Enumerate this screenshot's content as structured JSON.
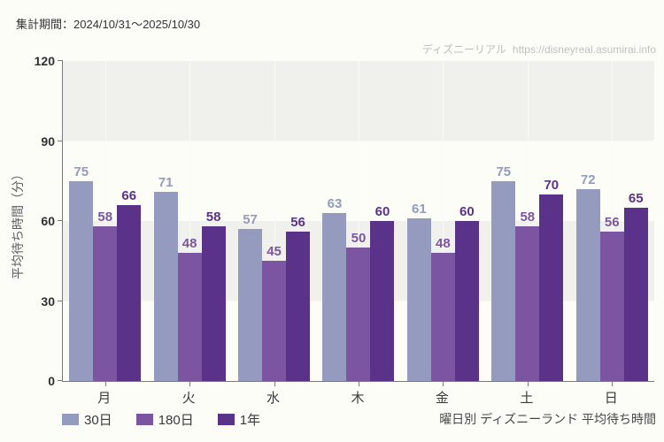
{
  "header": {
    "period": "集計期間：2024/10/31～2025/10/30"
  },
  "watermark": {
    "site": "ディズニーリアル",
    "url": "https://disneyreal.asumirai.info"
  },
  "chart_data": {
    "type": "bar",
    "title": "曜日別 ディズニーランド 平均待ち時間",
    "ylabel": "平均待ち時間（分）",
    "xlabel": "",
    "ylim": [
      0,
      120
    ],
    "yticks": [
      0,
      30,
      60,
      90,
      120
    ],
    "categories": [
      "月",
      "火",
      "水",
      "木",
      "金",
      "土",
      "日"
    ],
    "series": [
      {
        "name": "30日",
        "color": "#949bbf",
        "values": [
          75,
          71,
          57,
          63,
          61,
          75,
          72
        ]
      },
      {
        "name": "180日",
        "color": "#7c55a2",
        "values": [
          58,
          48,
          45,
          50,
          48,
          58,
          56
        ]
      },
      {
        "name": "1年",
        "color": "#5b3289",
        "values": [
          66,
          58,
          56,
          60,
          60,
          70,
          65
        ]
      }
    ],
    "legend_position": "bottom-left",
    "grid": "alternating-horizontal-bands",
    "band_color": "#f0f1ec",
    "background_color": "#fcfdf7",
    "axis_color": "#7a7a7a"
  }
}
